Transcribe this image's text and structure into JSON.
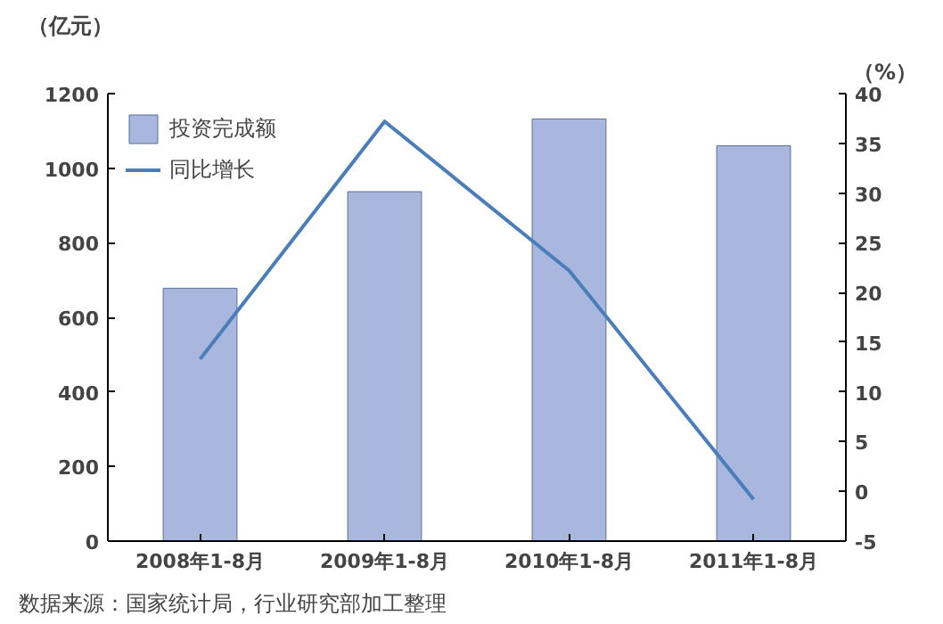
{
  "chart_data": {
    "type": "bar",
    "categories": [
      "2008年1-8月",
      "2009年1-8月",
      "2010年1-8月",
      "2011年1-8月"
    ],
    "ylabel": "（亿元）",
    "y2label": "（%）",
    "series": [
      {
        "name": "投资完成额",
        "color": "#a9b7de",
        "values": [
          678,
          937,
          1132,
          1060
        ]
      },
      {
        "name": "同比增长",
        "type": "line",
        "axis": "y2",
        "color": "#4a7ebb",
        "values": [
          13.3,
          37.2,
          22.2,
          -0.8
        ]
      }
    ],
    "ylim": [
      0,
      1200
    ],
    "yticks": [
      0,
      200,
      400,
      600,
      800,
      1000,
      1200
    ],
    "y2lim": [
      -5,
      40
    ],
    "y2ticks": [
      -5,
      0,
      5,
      10,
      15,
      20,
      25,
      30,
      35,
      40
    ],
    "legend": "top left",
    "grid": false,
    "line_style": "solid",
    "marker": "none",
    "annotations": [
      "数据来源：国家统计局，行业研究部加工整理"
    ]
  }
}
